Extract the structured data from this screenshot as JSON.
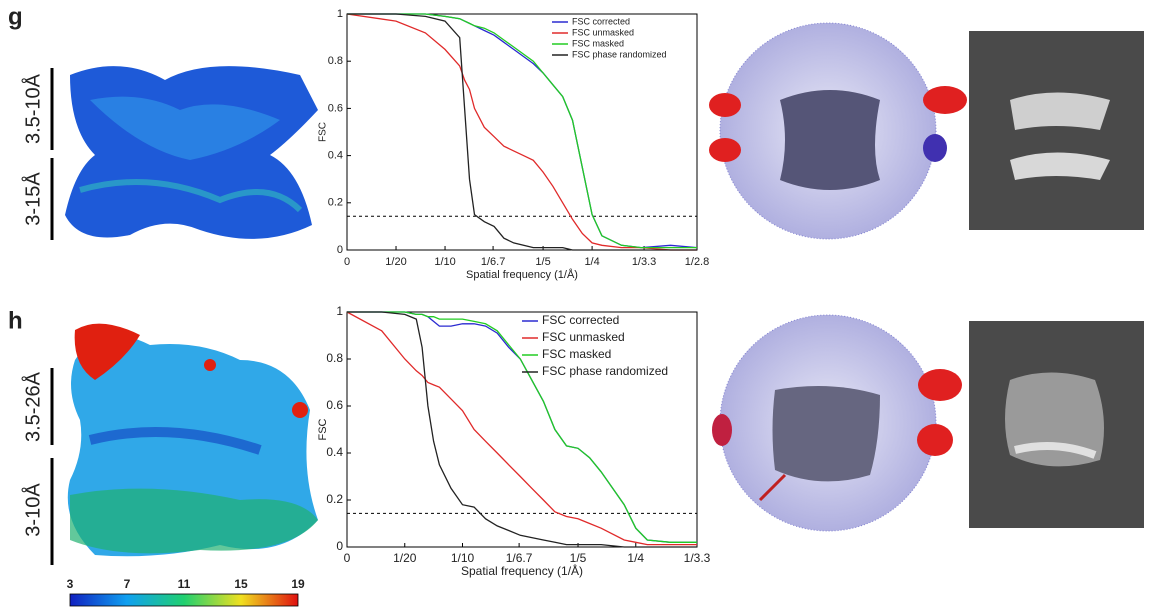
{
  "panels": [
    {
      "letter": "g",
      "upper": "3.5-10Å",
      "lower": "3-15Å"
    },
    {
      "letter": "h",
      "upper": "3.5-26Å",
      "lower": "3-10Å"
    }
  ],
  "colorbar": {
    "ticks": [
      3,
      7,
      11,
      15,
      19
    ],
    "range": [
      3,
      19
    ]
  },
  "chart_data": [
    {
      "type": "line",
      "xlabel": "Spatial frequency (1/Å)",
      "ylabel": "FSC",
      "xlim": [
        0,
        0.357
      ],
      "ylim": [
        0,
        1
      ],
      "hline": 0.143,
      "xticks": [
        0,
        {
          "value": 0.05,
          "label": "1/20"
        },
        {
          "value": 0.1,
          "label": "1/10"
        },
        {
          "value": 0.149,
          "label": "1/6.7"
        },
        {
          "value": 0.2,
          "label": "1/5"
        },
        {
          "value": 0.25,
          "label": "1/4"
        },
        {
          "value": 0.303,
          "label": "1/3.3"
        },
        {
          "value": 0.357,
          "label": "1/2.8"
        }
      ],
      "yticks": [
        0,
        0.2,
        0.4,
        0.6,
        0.8,
        1
      ],
      "x": [
        0,
        0.05,
        0.08,
        0.1,
        0.115,
        0.12,
        0.125,
        0.13,
        0.14,
        0.15,
        0.16,
        0.17,
        0.18,
        0.19,
        0.2,
        0.21,
        0.22,
        0.23,
        0.24,
        0.25,
        0.26,
        0.28,
        0.3,
        0.33,
        0.357
      ],
      "series": [
        {
          "name": "FSC corrected",
          "color": "#2a2ad0",
          "values": [
            1,
            1,
            1,
            0.99,
            0.98,
            0.97,
            0.96,
            0.95,
            0.93,
            0.91,
            0.88,
            0.85,
            0.82,
            0.79,
            0.75,
            0.7,
            0.65,
            0.55,
            0.35,
            0.15,
            0.06,
            0.02,
            0.01,
            0.02,
            0.01
          ]
        },
        {
          "name": "FSC unmasked",
          "color": "#e02a2a",
          "values": [
            1,
            0.97,
            0.92,
            0.85,
            0.78,
            0.72,
            0.68,
            0.6,
            0.52,
            0.48,
            0.44,
            0.42,
            0.4,
            0.38,
            0.33,
            0.27,
            0.2,
            0.13,
            0.07,
            0.03,
            0.02,
            0.01,
            0.01,
            0,
            0
          ]
        },
        {
          "name": "FSC masked",
          "color": "#22cc22",
          "values": [
            1,
            1,
            1,
            0.99,
            0.98,
            0.97,
            0.96,
            0.95,
            0.94,
            0.92,
            0.89,
            0.86,
            0.83,
            0.8,
            0.75,
            0.7,
            0.65,
            0.55,
            0.35,
            0.15,
            0.06,
            0.02,
            0.01,
            0.01,
            0.01
          ]
        },
        {
          "name": "FSC phase randomized",
          "color": "#222222",
          "values": [
            1,
            1,
            0.99,
            0.97,
            0.9,
            0.6,
            0.3,
            0.15,
            0.12,
            0.1,
            0.05,
            0.03,
            0.02,
            0.01,
            0.01,
            0.01,
            0.01,
            0,
            0,
            0,
            0,
            0,
            0,
            0,
            0
          ]
        }
      ]
    },
    {
      "type": "line",
      "xlabel": "Spatial frequency (1/Å)",
      "ylabel": "FSC",
      "xlim": [
        0,
        0.303
      ],
      "ylim": [
        0,
        1
      ],
      "hline": 0.143,
      "xticks": [
        0,
        {
          "value": 0.05,
          "label": "1/20"
        },
        {
          "value": 0.1,
          "label": "1/10"
        },
        {
          "value": 0.149,
          "label": "1/6.7"
        },
        {
          "value": 0.2,
          "label": "1/5"
        },
        {
          "value": 0.25,
          "label": "1/4"
        },
        {
          "value": 0.303,
          "label": "1/3.3"
        }
      ],
      "yticks": [
        0,
        0.2,
        0.4,
        0.6,
        0.8,
        1
      ],
      "x": [
        0,
        0.03,
        0.05,
        0.06,
        0.065,
        0.07,
        0.075,
        0.08,
        0.09,
        0.1,
        0.11,
        0.12,
        0.13,
        0.14,
        0.15,
        0.16,
        0.17,
        0.18,
        0.19,
        0.2,
        0.21,
        0.22,
        0.24,
        0.25,
        0.26,
        0.28,
        0.303
      ],
      "series": [
        {
          "name": "FSC corrected",
          "color": "#2a2ad0",
          "values": [
            1,
            1,
            1,
            0.99,
            0.99,
            0.98,
            0.96,
            0.94,
            0.94,
            0.95,
            0.95,
            0.94,
            0.91,
            0.85,
            0.8,
            0.71,
            0.62,
            0.5,
            0.43,
            0.42,
            0.38,
            0.32,
            0.18,
            0.08,
            0.03,
            0.02,
            0.02
          ]
        },
        {
          "name": "FSC unmasked",
          "color": "#e02a2a",
          "values": [
            1,
            0.92,
            0.8,
            0.75,
            0.73,
            0.7,
            0.69,
            0.68,
            0.63,
            0.58,
            0.5,
            0.45,
            0.4,
            0.35,
            0.3,
            0.25,
            0.2,
            0.15,
            0.13,
            0.12,
            0.1,
            0.08,
            0.03,
            0.02,
            0.01,
            0.01,
            0.01
          ]
        },
        {
          "name": "FSC masked",
          "color": "#22cc22",
          "values": [
            1,
            1,
            1,
            0.99,
            0.99,
            0.98,
            0.98,
            0.97,
            0.97,
            0.97,
            0.96,
            0.95,
            0.92,
            0.86,
            0.8,
            0.71,
            0.62,
            0.5,
            0.43,
            0.42,
            0.38,
            0.32,
            0.18,
            0.08,
            0.03,
            0.02,
            0.02
          ]
        },
        {
          "name": "FSC phase randomized",
          "color": "#222222",
          "values": [
            1,
            1,
            0.99,
            0.97,
            0.85,
            0.6,
            0.45,
            0.35,
            0.25,
            0.18,
            0.17,
            0.12,
            0.09,
            0.07,
            0.05,
            0.04,
            0.03,
            0.02,
            0.01,
            0.01,
            0.01,
            0.01,
            0,
            0,
            0,
            0,
            0
          ]
        }
      ]
    }
  ]
}
